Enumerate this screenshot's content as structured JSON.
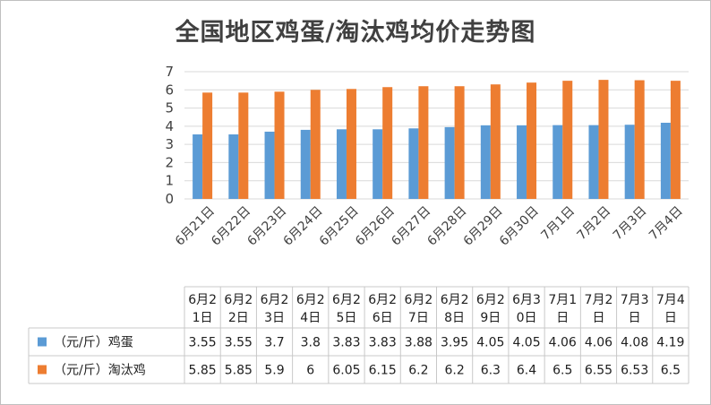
{
  "chart_data": {
    "type": "bar",
    "title": "全国地区鸡蛋/淘汰鸡均价走势图",
    "categories": [
      "6月21日",
      "6月22日",
      "6月23日",
      "6月24日",
      "6月25日",
      "6月26日",
      "6月27日",
      "6月28日",
      "6月29日",
      "6月30日",
      "7月1日",
      "7月2日",
      "7月3日",
      "7月4日"
    ],
    "series": [
      {
        "name": "（元/斤）鸡蛋",
        "color": "#5b9bd5",
        "values": [
          3.55,
          3.55,
          3.7,
          3.8,
          3.83,
          3.83,
          3.88,
          3.95,
          4.05,
          4.05,
          4.06,
          4.06,
          4.08,
          4.19
        ]
      },
      {
        "name": "（元/斤）淘汰鸡",
        "color": "#ed7d31",
        "values": [
          5.85,
          5.85,
          5.9,
          6,
          6.05,
          6.15,
          6.2,
          6.2,
          6.3,
          6.4,
          6.5,
          6.55,
          6.53,
          6.5
        ]
      }
    ],
    "value_labels": [
      [
        "3.55",
        "3.55",
        "3.7",
        "3.8",
        "3.83",
        "3.83",
        "3.88",
        "3.95",
        "4.05",
        "4.05",
        "4.06",
        "4.06",
        "4.08",
        "4.19"
      ],
      [
        "5.85",
        "5.85",
        "5.9",
        "6",
        "6.05",
        "6.15",
        "6.2",
        "6.2",
        "6.3",
        "6.4",
        "6.5",
        "6.55",
        "6.53",
        "6.5"
      ]
    ],
    "table_headers": [
      [
        "6月2",
        "1日"
      ],
      [
        "6月2",
        "2日"
      ],
      [
        "6月2",
        "3日"
      ],
      [
        "6月2",
        "4日"
      ],
      [
        "6月2",
        "5日"
      ],
      [
        "6月2",
        "6日"
      ],
      [
        "6月2",
        "7日"
      ],
      [
        "6月2",
        "8日"
      ],
      [
        "6月2",
        "9日"
      ],
      [
        "6月3",
        "0日"
      ],
      [
        "7月1",
        "日"
      ],
      [
        "7月2",
        "日"
      ],
      [
        "7月3",
        "日"
      ],
      [
        "7月4",
        "日"
      ]
    ],
    "ylim": [
      0,
      7
    ],
    "yticks": [
      0,
      1,
      2,
      3,
      4,
      5,
      6,
      7
    ],
    "ytick_labels": [
      "0",
      "1",
      "2",
      "3",
      "4",
      "5",
      "6",
      "7"
    ],
    "grid": true,
    "legend": "data-table"
  }
}
